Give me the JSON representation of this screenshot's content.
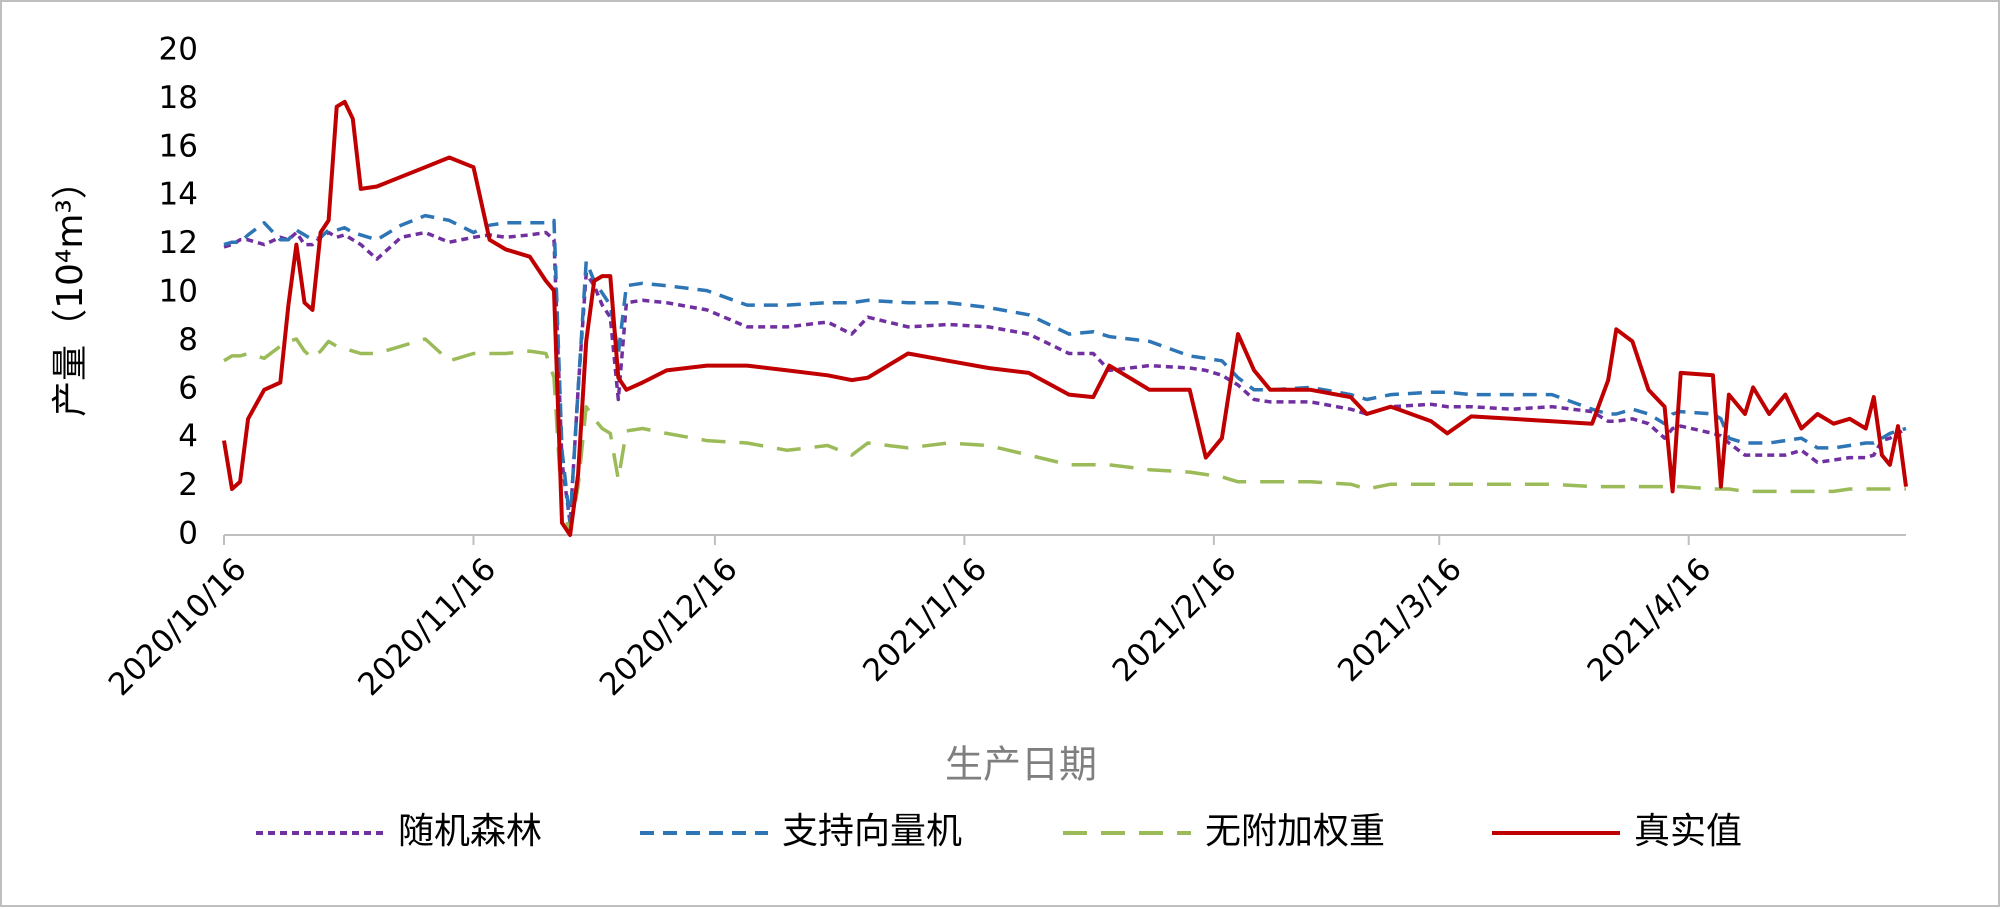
{
  "chart_data": {
    "type": "line",
    "y_label": "产量（10⁴m³）",
    "x_label": "生产日期",
    "x": [
      "2020/10/16",
      "2020/10/17",
      "2020/10/18",
      "2020/10/19",
      "2020/10/21",
      "2020/10/23",
      "2020/10/24",
      "2020/10/25",
      "2020/10/26",
      "2020/10/27",
      "2020/10/28",
      "2020/10/29",
      "2020/10/30",
      "2020/10/31",
      "2020/11/1",
      "2020/11/2",
      "2020/11/4",
      "2020/11/7",
      "2020/11/10",
      "2020/11/13",
      "2020/11/16",
      "2020/11/18",
      "2020/11/20",
      "2020/11/23",
      "2020/11/25",
      "2020/11/26",
      "2020/11/27",
      "2020/11/28",
      "2020/11/29",
      "2020/11/30",
      "2020/12/1",
      "2020/12/2",
      "2020/12/3",
      "2020/12/4",
      "2020/12/5",
      "2020/12/7",
      "2020/12/10",
      "2020/12/15",
      "2020/12/20",
      "2020/12/25",
      "2020/12/30",
      "2021/1/2",
      "2021/1/4",
      "2021/1/9",
      "2021/1/14",
      "2021/1/19",
      "2021/1/24",
      "2021/1/29",
      "2021/2/1",
      "2021/2/3",
      "2021/2/8",
      "2021/2/13",
      "2021/2/15",
      "2021/2/17",
      "2021/2/19",
      "2021/2/21",
      "2021/2/23",
      "2021/2/28",
      "2021/3/5",
      "2021/3/7",
      "2021/3/10",
      "2021/3/15",
      "2021/3/17",
      "2021/3/20",
      "2021/3/25",
      "2021/3/30",
      "2021/4/4",
      "2021/4/6",
      "2021/4/7",
      "2021/4/9",
      "2021/4/11",
      "2021/4/13",
      "2021/4/14",
      "2021/4/15",
      "2021/4/19",
      "2021/4/20",
      "2021/4/21",
      "2021/4/23",
      "2021/4/24",
      "2021/4/26",
      "2021/4/28",
      "2021/4/30",
      "2021/5/2",
      "2021/5/4",
      "2021/5/6",
      "2021/5/8",
      "2021/5/9",
      "2021/5/10",
      "2021/5/11",
      "2021/5/12",
      "2021/5/13"
    ],
    "series": [
      {
        "name": "随机森林",
        "color": "#7030a0",
        "dash": "short",
        "values": [
          11.9,
          12.0,
          12.2,
          12.2,
          12.0,
          12.3,
          12.2,
          12.5,
          12.0,
          12.0,
          12.3,
          12.5,
          12.3,
          12.4,
          12.2,
          12.0,
          11.4,
          12.3,
          12.5,
          12.1,
          12.3,
          12.4,
          12.3,
          12.4,
          12.5,
          12.2,
          3.0,
          0.5,
          6.0,
          10.8,
          10.3,
          9.5,
          9.0,
          5.6,
          9.6,
          9.7,
          9.6,
          9.3,
          8.6,
          8.6,
          8.8,
          8.3,
          9.0,
          8.6,
          8.7,
          8.6,
          8.3,
          7.5,
          7.5,
          6.8,
          7.0,
          6.9,
          6.8,
          6.6,
          6.2,
          5.6,
          5.5,
          5.5,
          5.2,
          5.0,
          5.3,
          5.4,
          5.3,
          5.3,
          5.2,
          5.3,
          5.1,
          4.7,
          4.7,
          4.8,
          4.6,
          4.0,
          4.4,
          4.5,
          4.2,
          4.1,
          3.8,
          3.3,
          3.3,
          3.3,
          3.3,
          3.5,
          3.0,
          3.1,
          3.2,
          3.2,
          3.3,
          3.9,
          4.0,
          4.2,
          4.4
        ]
      },
      {
        "name": "支持向量机",
        "color": "#2e75b6",
        "dash": "medium",
        "values": [
          12.0,
          12.1,
          12.1,
          12.4,
          12.9,
          12.2,
          12.2,
          12.6,
          12.4,
          12.2,
          12.3,
          12.6,
          12.6,
          12.7,
          12.5,
          12.4,
          12.2,
          12.8,
          13.2,
          13.0,
          12.5,
          12.8,
          12.9,
          12.9,
          12.9,
          13.0,
          3.5,
          0.5,
          6.0,
          11.3,
          10.5,
          10.0,
          9.5,
          7.5,
          10.3,
          10.4,
          10.3,
          10.1,
          9.5,
          9.5,
          9.6,
          9.6,
          9.7,
          9.6,
          9.6,
          9.4,
          9.1,
          8.3,
          8.4,
          8.2,
          8.0,
          7.4,
          7.3,
          7.2,
          6.5,
          6.0,
          6.0,
          6.1,
          5.8,
          5.6,
          5.8,
          5.9,
          5.9,
          5.8,
          5.8,
          5.8,
          5.2,
          5.0,
          5.0,
          5.2,
          5.0,
          4.6,
          5.0,
          5.1,
          5.0,
          4.8,
          4.0,
          3.8,
          3.8,
          3.8,
          3.9,
          4.0,
          3.6,
          3.6,
          3.7,
          3.8,
          3.8,
          4.0,
          4.2,
          4.3,
          4.4
        ]
      },
      {
        "name": "无附加权重",
        "color": "#9bbb59",
        "dash": "long",
        "values": [
          7.2,
          7.4,
          7.4,
          7.5,
          7.3,
          7.8,
          8.0,
          8.1,
          7.6,
          7.3,
          7.6,
          8.0,
          7.8,
          7.7,
          7.6,
          7.5,
          7.5,
          7.8,
          8.1,
          7.2,
          7.5,
          7.5,
          7.5,
          7.6,
          7.5,
          6.5,
          1.0,
          0.2,
          2.0,
          5.3,
          4.8,
          4.4,
          4.2,
          2.3,
          4.3,
          4.4,
          4.2,
          3.9,
          3.8,
          3.5,
          3.7,
          3.3,
          3.8,
          3.6,
          3.8,
          3.7,
          3.3,
          2.9,
          2.9,
          2.9,
          2.7,
          2.6,
          2.5,
          2.4,
          2.2,
          2.2,
          2.2,
          2.2,
          2.1,
          1.9,
          2.1,
          2.1,
          2.1,
          2.1,
          2.1,
          2.1,
          2.0,
          2.0,
          2.0,
          2.0,
          2.0,
          2.0,
          2.0,
          2.0,
          1.9,
          1.9,
          1.9,
          1.8,
          1.8,
          1.8,
          1.8,
          1.8,
          1.8,
          1.8,
          1.9,
          1.9,
          1.9,
          1.9,
          1.9,
          1.9,
          1.9
        ]
      },
      {
        "name": "真实值",
        "color": "#c00000",
        "dash": "solid",
        "values": [
          3.9,
          1.9,
          2.2,
          4.8,
          6.0,
          6.3,
          9.5,
          12.0,
          9.6,
          9.3,
          12.5,
          13.0,
          17.7,
          17.9,
          17.2,
          14.3,
          14.4,
          14.8,
          15.2,
          15.6,
          15.2,
          12.2,
          11.8,
          11.5,
          10.5,
          10.1,
          0.5,
          0,
          2.5,
          8.0,
          10.5,
          10.7,
          10.7,
          6.5,
          6.0,
          6.3,
          6.8,
          7.0,
          7.0,
          6.8,
          6.6,
          6.4,
          6.5,
          7.5,
          7.2,
          6.9,
          6.7,
          5.8,
          5.7,
          7.0,
          6.0,
          6.0,
          3.2,
          4.0,
          8.3,
          6.8,
          6.0,
          6.0,
          5.7,
          5.0,
          5.3,
          4.7,
          4.2,
          4.9,
          4.8,
          4.7,
          4.6,
          6.4,
          8.5,
          8.0,
          6.0,
          5.3,
          1.8,
          6.7,
          6.6,
          2.0,
          5.8,
          5.0,
          6.1,
          5.0,
          5.8,
          4.4,
          5.0,
          4.6,
          4.8,
          4.4,
          5.7,
          3.3,
          2.9,
          4.5,
          2.0
        ]
      }
    ],
    "xlim": [
      "2020/10/16",
      "2021/5/13"
    ],
    "xticks": [
      "2020/10/16",
      "2020/11/16",
      "2020/12/16",
      "2021/1/16",
      "2021/2/16",
      "2021/3/16",
      "2021/4/16"
    ],
    "ylim": [
      0,
      20
    ],
    "yticks": [
      0,
      2,
      4,
      6,
      8,
      10,
      12,
      14,
      16,
      18,
      20
    ],
    "grid": false,
    "legend": "bottom"
  }
}
